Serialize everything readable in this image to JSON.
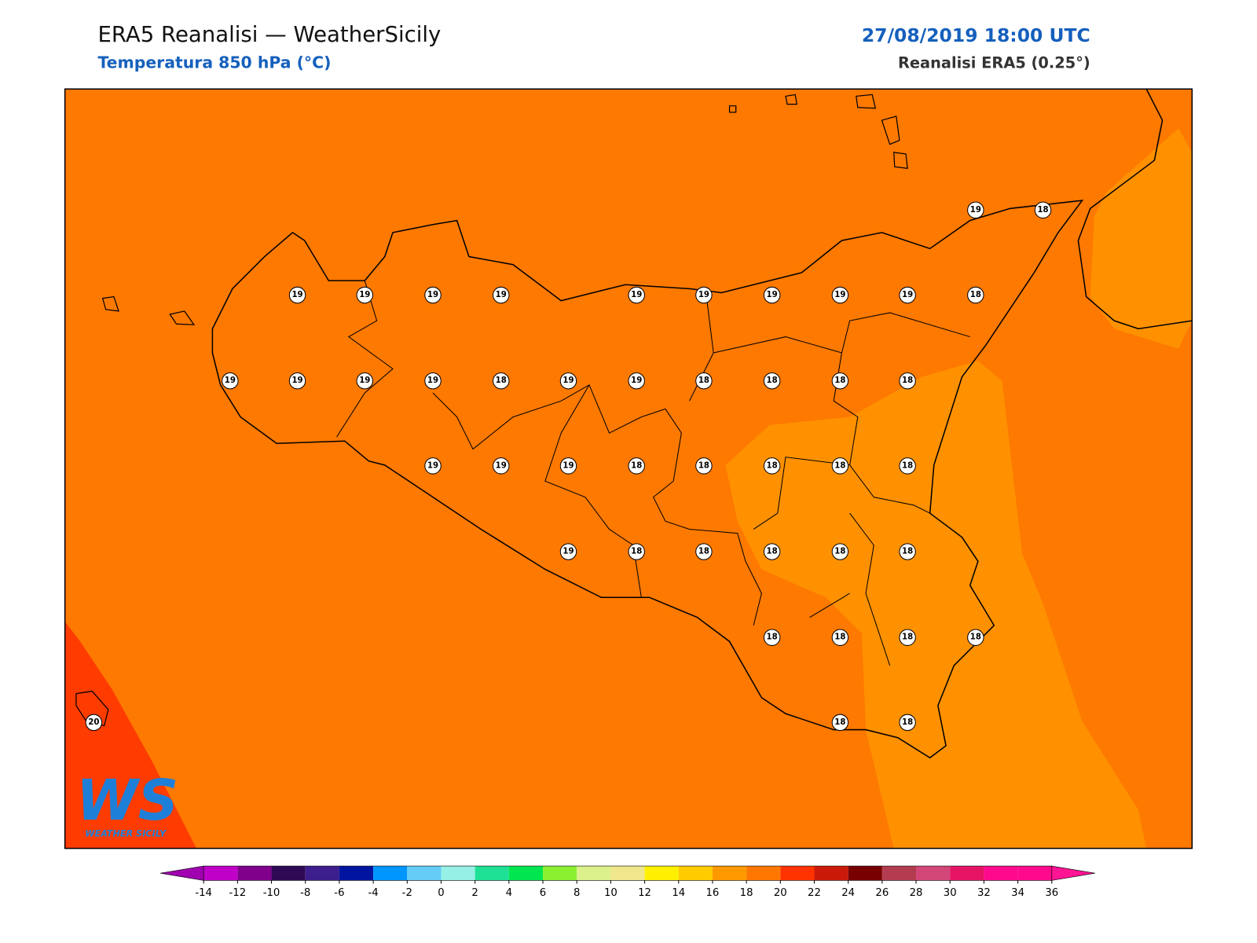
{
  "header": {
    "title": "ERA5 Reanalisi — WeatherSicily",
    "subtitle": "Temperatura 850 hPa (°C)",
    "datetime": "27/08/2019 18:00 UTC",
    "source": "Reanalisi ERA5 (0.25°)"
  },
  "map": {
    "stations": [
      19,
      18,
      19,
      19,
      19,
      19,
      19,
      19,
      19,
      19,
      19,
      18,
      19,
      19,
      19,
      19,
      18,
      19,
      19,
      18,
      18,
      18,
      18,
      19,
      19,
      19,
      18,
      18,
      18,
      18,
      18,
      19,
      18,
      18,
      18,
      18,
      18,
      18,
      18,
      18,
      18,
      20,
      18,
      18
    ]
  },
  "colorbar": {
    "ticks": [
      -14,
      -12,
      -10,
      -8,
      -6,
      -4,
      -2,
      0,
      2,
      4,
      6,
      8,
      10,
      12,
      14,
      16,
      18,
      20,
      22,
      24,
      26,
      28,
      30,
      32,
      34,
      36
    ],
    "colors": [
      "#c000c8",
      "#80008c",
      "#2e0a55",
      "#3c1e8c",
      "#0014a0",
      "#0096ff",
      "#64ccf5",
      "#96f0e6",
      "#1ee196",
      "#00e650",
      "#8cf032",
      "#dcf08c",
      "#f0e68c",
      "#fff000",
      "#ffcc00",
      "#ff9900",
      "#ff7700",
      "#ff3300",
      "#cc1a0a",
      "#780000",
      "#b43c50",
      "#d24678",
      "#e61464",
      "#ff0a8c",
      "#ff0a8c"
    ],
    "under_color": "#a000b0",
    "over_color": "#ff1493"
  },
  "logo": {
    "mark": "WS",
    "name": "WEATHER SICILY"
  }
}
